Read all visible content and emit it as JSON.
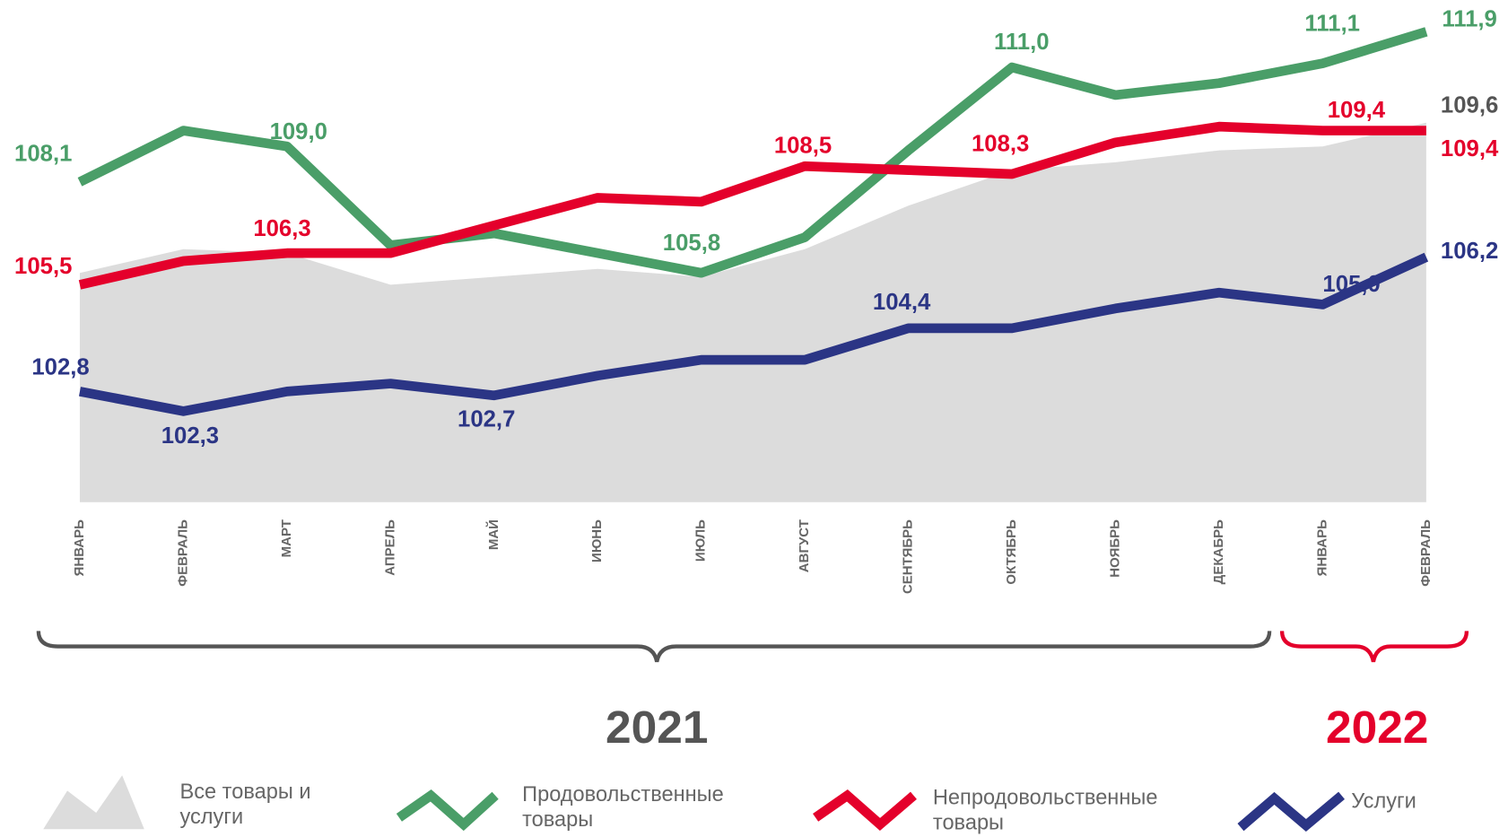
{
  "chart_data": {
    "type": "line",
    "categories": [
      "ЯНВАРЬ",
      "ФЕВРАЛЬ",
      "МАРТ",
      "АПРЕЛЬ",
      "МАЙ",
      "ИЮНЬ",
      "ИЮЛЬ",
      "АВГУСТ",
      "СЕНТЯБРЬ",
      "ОКТЯБРЬ",
      "НОЯБРЬ",
      "ДЕКАБРЬ",
      "ЯНВАРЬ",
      "ФЕВРАЛЬ"
    ],
    "annotations": [
      {
        "text": "2021",
        "color": "#555555"
      },
      {
        "text": "2022",
        "color": "#e4002b"
      }
    ],
    "ylim": [
      100,
      112.7
    ],
    "series": [
      {
        "name": "Все товары и услуги",
        "kind": "area",
        "color": "#dcdcdc",
        "label_color": "#555555",
        "values": [
          105.8,
          106.4,
          106.3,
          105.5,
          105.7,
          105.9,
          105.7,
          106.4,
          107.5,
          108.4,
          108.6,
          108.9,
          109.0,
          109.6
        ],
        "value_labels": [
          null,
          null,
          null,
          null,
          null,
          null,
          null,
          null,
          null,
          null,
          null,
          null,
          null,
          "109,6"
        ]
      },
      {
        "name": "Продовольственные товары",
        "kind": "line",
        "color": "#4a9e68",
        "label_color": "#4a9e68",
        "values": [
          108.1,
          109.4,
          109.0,
          106.5,
          106.8,
          106.3,
          105.8,
          106.7,
          108.9,
          111.0,
          110.3,
          110.6,
          111.1,
          111.9
        ],
        "value_labels": [
          "108,1",
          null,
          "109,0",
          null,
          null,
          null,
          "105,8",
          null,
          null,
          "111,0",
          null,
          null,
          "111,1",
          "111,9"
        ]
      },
      {
        "name": "Непродовольственные товары",
        "kind": "line",
        "color": "#e4002b",
        "label_color": "#e4002b",
        "values": [
          105.5,
          106.1,
          106.3,
          106.3,
          107.0,
          107.7,
          107.6,
          108.5,
          108.4,
          108.3,
          109.1,
          109.5,
          109.4,
          109.4
        ],
        "value_labels": [
          "105,5",
          null,
          "106,3",
          null,
          null,
          null,
          null,
          "108,5",
          null,
          "108,3",
          null,
          null,
          "109,4",
          "109,4"
        ]
      },
      {
        "name": "Услуги",
        "kind": "line",
        "color": "#2b3585",
        "label_color": "#2b3585",
        "values": [
          102.8,
          102.3,
          102.8,
          103.0,
          102.7,
          103.2,
          103.6,
          103.6,
          104.4,
          104.4,
          104.9,
          105.3,
          105.0,
          106.2
        ],
        "value_labels": [
          "102,8",
          "102,3",
          null,
          null,
          "102,7",
          null,
          null,
          null,
          "104,4",
          null,
          null,
          null,
          "105,0",
          "106,2"
        ]
      }
    ]
  }
}
